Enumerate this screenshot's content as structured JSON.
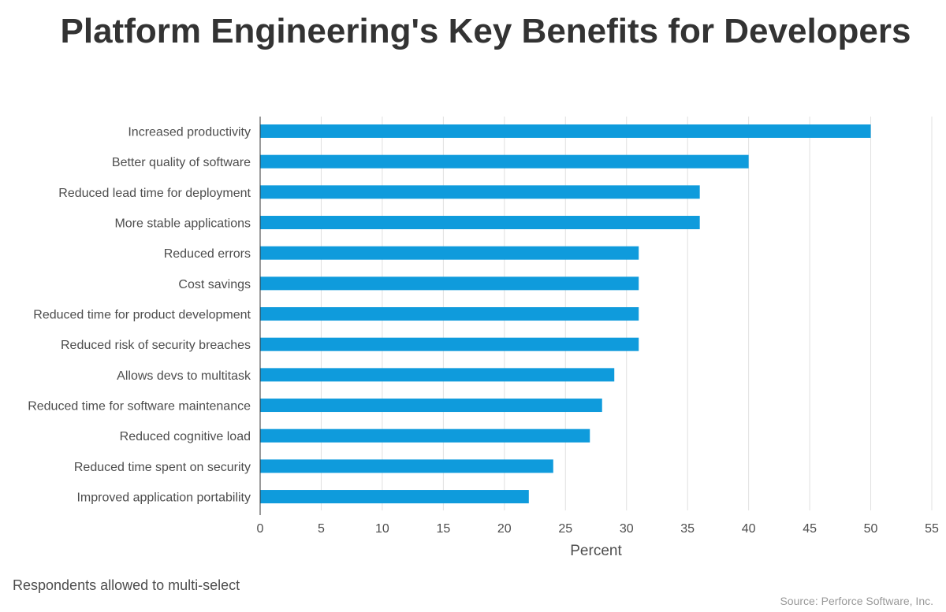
{
  "chart_data": {
    "type": "bar",
    "orientation": "horizontal",
    "title": "Platform Engineering's Key Benefits for Developers",
    "xlabel": "Percent",
    "ylabel": "",
    "categories": [
      "Increased productivity",
      "Better quality of software",
      "Reduced lead time for deployment",
      "More stable applications",
      "Reduced errors",
      "Cost savings",
      "Reduced time for product development",
      "Reduced risk of security breaches",
      "Allows devs to multitask",
      "Reduced time for software maintenance",
      "Reduced cognitive load",
      "Reduced time spent on security",
      "Improved application portability"
    ],
    "values": [
      50,
      40,
      36,
      36,
      31,
      31,
      31,
      31,
      29,
      28,
      27,
      24,
      22
    ],
    "xlim": [
      0,
      55
    ],
    "xticks": [
      0,
      5,
      10,
      15,
      20,
      25,
      30,
      35,
      40,
      45,
      50,
      55
    ],
    "grid": true,
    "bar_color": "#0f9bdc"
  },
  "footnote": "Respondents allowed to multi-select",
  "source": "Source: Perforce Software, Inc."
}
